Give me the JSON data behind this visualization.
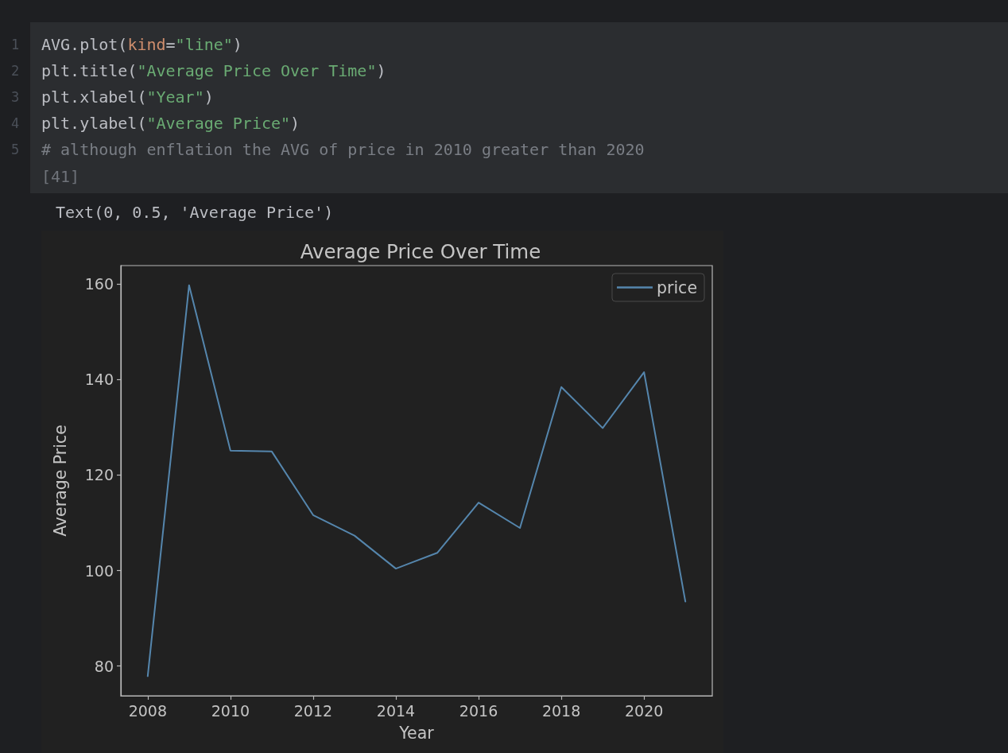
{
  "chart_data": {
    "type": "line",
    "title": "Average Price Over Time",
    "xlabel": "Year",
    "ylabel": "Average Price",
    "x": [
      2008,
      2009,
      2010,
      2011,
      2012,
      2013,
      2014,
      2015,
      2016,
      2017,
      2018,
      2019,
      2020,
      2021
    ],
    "series": [
      {
        "name": "price",
        "color": "#5586ad",
        "values": [
          77.9,
          159.7,
          125.1,
          124.9,
          111.6,
          107.3,
          100.4,
          103.7,
          114.2,
          108.9,
          138.4,
          129.8,
          141.5,
          93.5
        ]
      }
    ],
    "xlim": [
      2007.35,
      2021.65
    ],
    "ylim": [
      73.8,
      163.8
    ],
    "xticks": [
      2008,
      2010,
      2012,
      2014,
      2016,
      2018,
      2020
    ],
    "yticks": [
      80,
      100,
      120,
      140,
      160
    ],
    "grid": false,
    "legend": "top right",
    "marker": "none",
    "line_style": "solid",
    "annotations": [
      "1",
      "2",
      "3",
      "4",
      "5",
      "AVG.plot(kind=\"line\")",
      "plt.title(\"Average Price Over Time\")",
      "plt.xlabel(\"Year\")",
      "plt.ylabel(\"Average Price\")",
      "# although enflation the AVG of price in 2010 greater than 2020",
      "[41]",
      "Text(0, 0.5, 'Average Price')"
    ]
  }
}
